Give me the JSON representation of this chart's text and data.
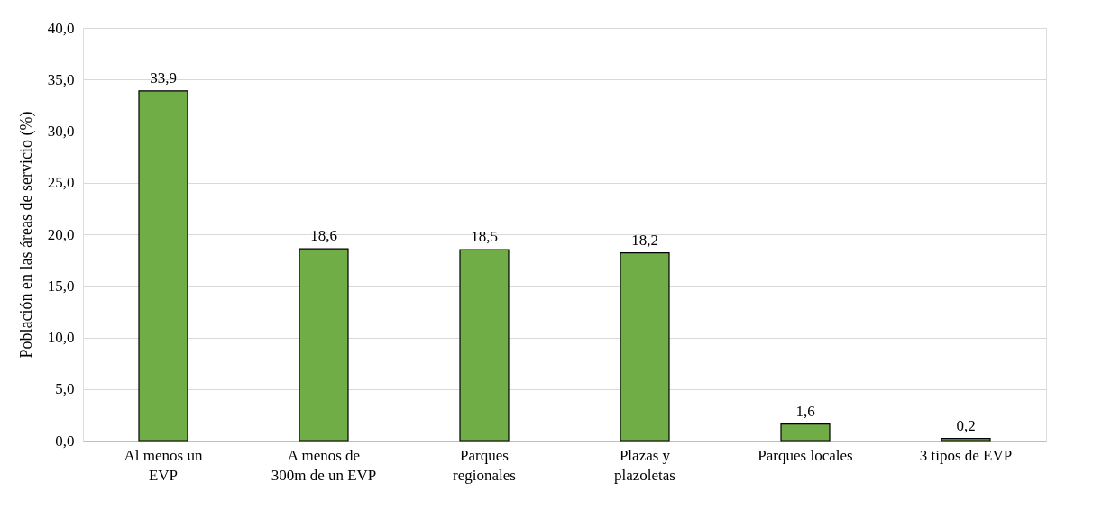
{
  "chart_data": {
    "type": "bar",
    "ylabel": "Población en las áreas de servicio (%)",
    "categories": [
      "Al menos un\nEVP",
      "A menos de\n300m de un EVP",
      "Parques\nregionales",
      "Plazas y\nplazoletas",
      "Parques locales",
      "3 tipos de EVP"
    ],
    "values": [
      33.9,
      18.6,
      18.5,
      18.2,
      1.6,
      0.2
    ],
    "value_labels": [
      "33,9",
      "18,6",
      "18,5",
      "18,2",
      "1,6",
      "0,2"
    ],
    "color": "#70ad47",
    "ylim": [
      0,
      40
    ],
    "yticks": [
      {
        "value": 0,
        "label": "0,0"
      },
      {
        "value": 5,
        "label": "5,0"
      },
      {
        "value": 10,
        "label": "10,0"
      },
      {
        "value": 15,
        "label": "15,0"
      },
      {
        "value": 20,
        "label": "20,0"
      },
      {
        "value": 25,
        "label": "25,0"
      },
      {
        "value": 30,
        "label": "30,0"
      },
      {
        "value": 35,
        "label": "35,0"
      },
      {
        "value": 40,
        "label": "40,0"
      }
    ],
    "grid": "y"
  }
}
